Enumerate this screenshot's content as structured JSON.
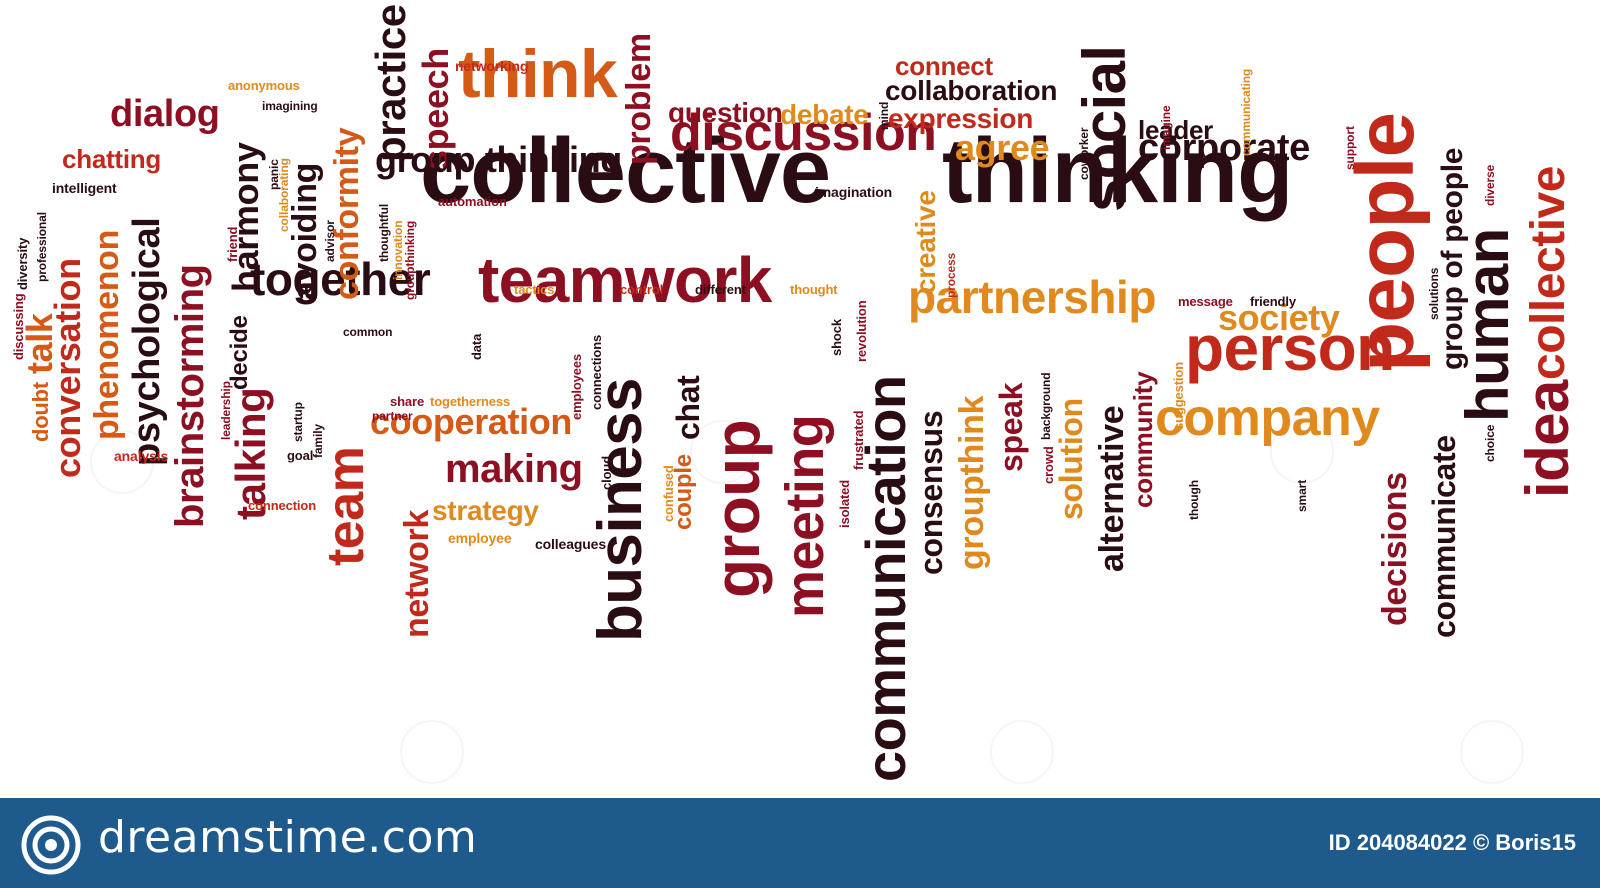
{
  "colors": {
    "palette": [
      "#2a0d12",
      "#8c0f22",
      "#c12a1a",
      "#d55a16",
      "#e08a1e",
      "#b21d2e"
    ],
    "footer_bg": "#1e5b8c",
    "footer_text": "#ffffff"
  },
  "words": [
    "collective",
    "thinking",
    "communication",
    "teamwork",
    "group",
    "meeting",
    "business",
    "people",
    "person",
    "company",
    "partnership",
    "discussion",
    "social",
    "together",
    "team",
    "brainstorming",
    "think",
    "corporate",
    "cooperation",
    "human",
    "idea",
    "collective",
    "conversation",
    "phenomenon",
    "talking",
    "practice",
    "speech",
    "problem",
    "group thinking",
    "agree",
    "society",
    "decisions",
    "communicate",
    "group of people",
    "consensus",
    "groupthink",
    "alternative",
    "solution",
    "speak",
    "community",
    "making",
    "network",
    "strategy",
    "psychological",
    "harmony",
    "avoiding",
    "conformity",
    "dialog",
    "chatting",
    "talk",
    "doubt",
    "decide",
    "chat",
    "couple",
    "collaboration",
    "connect",
    "expression",
    "question",
    "debate",
    "leader",
    "creative",
    "imagination",
    "anonymous",
    "imagining",
    "networking",
    "automation",
    "tactics",
    "control",
    "different",
    "thought",
    "common",
    "share",
    "togetherness",
    "partner",
    "employee",
    "colleagues",
    "connection",
    "goal",
    "analysis",
    "intelligent",
    "discussing",
    "diversity",
    "professional",
    "friend",
    "panic",
    "collaborating",
    "advisor",
    "thoughtful",
    "innovation",
    "groupthinking",
    "leadership",
    "startup",
    "family",
    "data",
    "employees",
    "connections",
    "cloud",
    "confused",
    "isolated",
    "frustrated",
    "revolution",
    "shock",
    "process",
    "background",
    "crowd",
    "suggestion",
    "though",
    "message",
    "friendly",
    "solutions",
    "smart",
    "choice",
    "diverse",
    "support",
    "imagine",
    "coworker",
    "mind",
    "communicating"
  ],
  "footer": {
    "brand": "dreamstime.com",
    "credit": "ID 204084022 © Boris15"
  }
}
